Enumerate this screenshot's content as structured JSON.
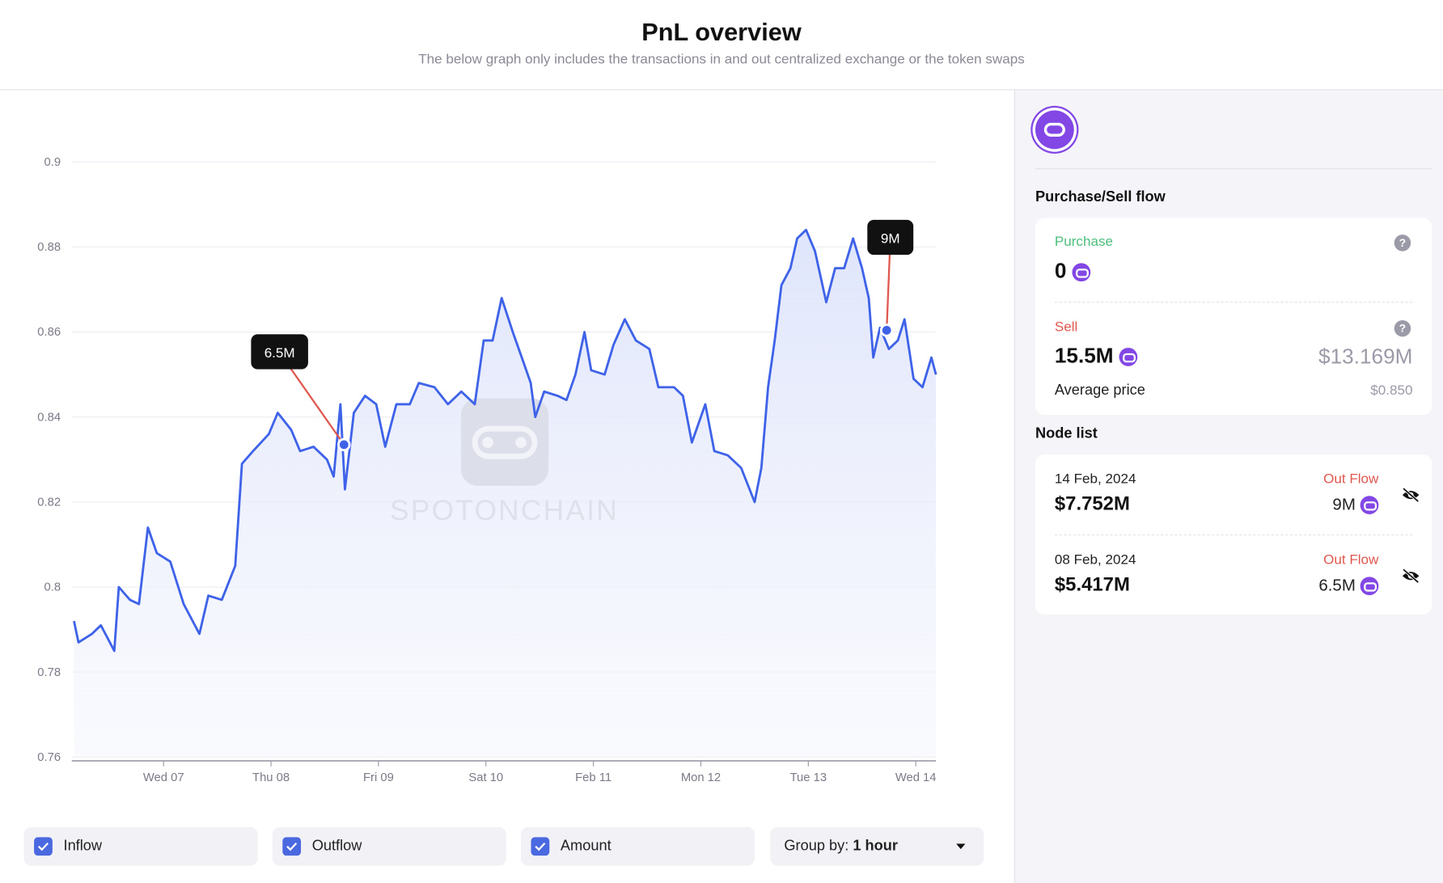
{
  "header": {
    "title": "PnL overview",
    "subtitle": "The below graph only includes the transactions in and out centralized exchange or the token swaps"
  },
  "chart_data": {
    "type": "line",
    "watermark": "SPOTONCHAIN",
    "color": "#3f63e8",
    "grid": true,
    "x": [
      -20,
      -19,
      -16,
      -14,
      -11,
      -10,
      -7.5,
      -5.5,
      -3.5,
      -1.5,
      1.5,
      4.5,
      8,
      10,
      13,
      16,
      17.5,
      20,
      23.5,
      25.5,
      28.5,
      30.5,
      33.5,
      36.5,
      38,
      39.5,
      40.5,
      42.5,
      45,
      47.5,
      49.5,
      52,
      55,
      57,
      60.5,
      63.5,
      66.5,
      69.5,
      71.5,
      73.5,
      75.5,
      78,
      80,
      82,
      83,
      85,
      88,
      90,
      92,
      94,
      95.5,
      98.5,
      100.5,
      103,
      105.5,
      108.5,
      110.5,
      114,
      116,
      118,
      121,
      123,
      126,
      129,
      132,
      133.5,
      135,
      136.5,
      138,
      140,
      141.5,
      143.5,
      145.5,
      148,
      150,
      152,
      154,
      156,
      157.5,
      158.5,
      160,
      162,
      164,
      165.5,
      167.5,
      169.5,
      171.5,
      172.5
    ],
    "values": [
      0.792,
      0.787,
      0.789,
      0.791,
      0.785,
      0.8,
      0.797,
      0.796,
      0.814,
      0.808,
      0.806,
      0.796,
      0.789,
      0.798,
      0.797,
      0.805,
      0.829,
      0.832,
      0.836,
      0.841,
      0.837,
      0.832,
      0.833,
      0.83,
      0.826,
      0.843,
      0.823,
      0.841,
      0.845,
      0.843,
      0.833,
      0.843,
      0.843,
      0.848,
      0.847,
      0.843,
      0.846,
      0.843,
      0.858,
      0.858,
      0.868,
      0.86,
      0.854,
      0.848,
      0.84,
      0.846,
      0.845,
      0.844,
      0.85,
      0.86,
      0.851,
      0.85,
      0.857,
      0.863,
      0.858,
      0.856,
      0.847,
      0.847,
      0.845,
      0.834,
      0.843,
      0.832,
      0.831,
      0.828,
      0.82,
      0.828,
      0.847,
      0.858,
      0.871,
      0.875,
      0.882,
      0.884,
      0.879,
      0.867,
      0.875,
      0.875,
      0.882,
      0.875,
      0.868,
      0.854,
      0.861,
      0.856,
      0.858,
      0.863,
      0.849,
      0.847,
      0.854,
      0.85
    ],
    "xlim": [
      -20.5,
      172.5
    ],
    "ylim": [
      0.76,
      0.9
    ],
    "yticks": [
      0.76,
      0.78,
      0.8,
      0.82,
      0.84,
      0.86,
      0.88,
      0.9
    ],
    "xticks": [
      {
        "value": 0,
        "label": "Wed 07"
      },
      {
        "value": 24,
        "label": "Thu 08"
      },
      {
        "value": 48,
        "label": "Fri 09"
      },
      {
        "value": 72,
        "label": "Sat 10"
      },
      {
        "value": 96,
        "label": "Feb 11"
      },
      {
        "value": 120,
        "label": "Mon 12"
      },
      {
        "value": 144,
        "label": "Tue 13"
      },
      {
        "value": 168,
        "label": "Wed 14"
      }
    ],
    "annotations": [
      {
        "text": "6.5M",
        "x": 40.3,
        "y": 0.8335
      },
      {
        "text": "9M",
        "x": 161.5,
        "y": 0.8604
      }
    ]
  },
  "controls": {
    "inflow": "Inflow",
    "outflow": "Outflow",
    "amount": "Amount",
    "group_label": "Group by:",
    "group_value": "1 hour"
  },
  "sidebar": {
    "flow_title": "Purchase/Sell flow",
    "purchase_label": "Purchase",
    "purchase_value": "0",
    "sell_label": "Sell",
    "sell_value": "15.5M",
    "sell_usd": "$13.169M",
    "avg_label": "Average price",
    "avg_value": "$0.850",
    "node_title": "Node list",
    "nodes": [
      {
        "date": "14 Feb, 2024",
        "flow": "Out Flow",
        "usd": "$7.752M",
        "amount": "9M"
      },
      {
        "date": "08 Feb, 2024",
        "flow": "Out Flow",
        "usd": "$5.417M",
        "amount": "6.5M"
      }
    ]
  }
}
